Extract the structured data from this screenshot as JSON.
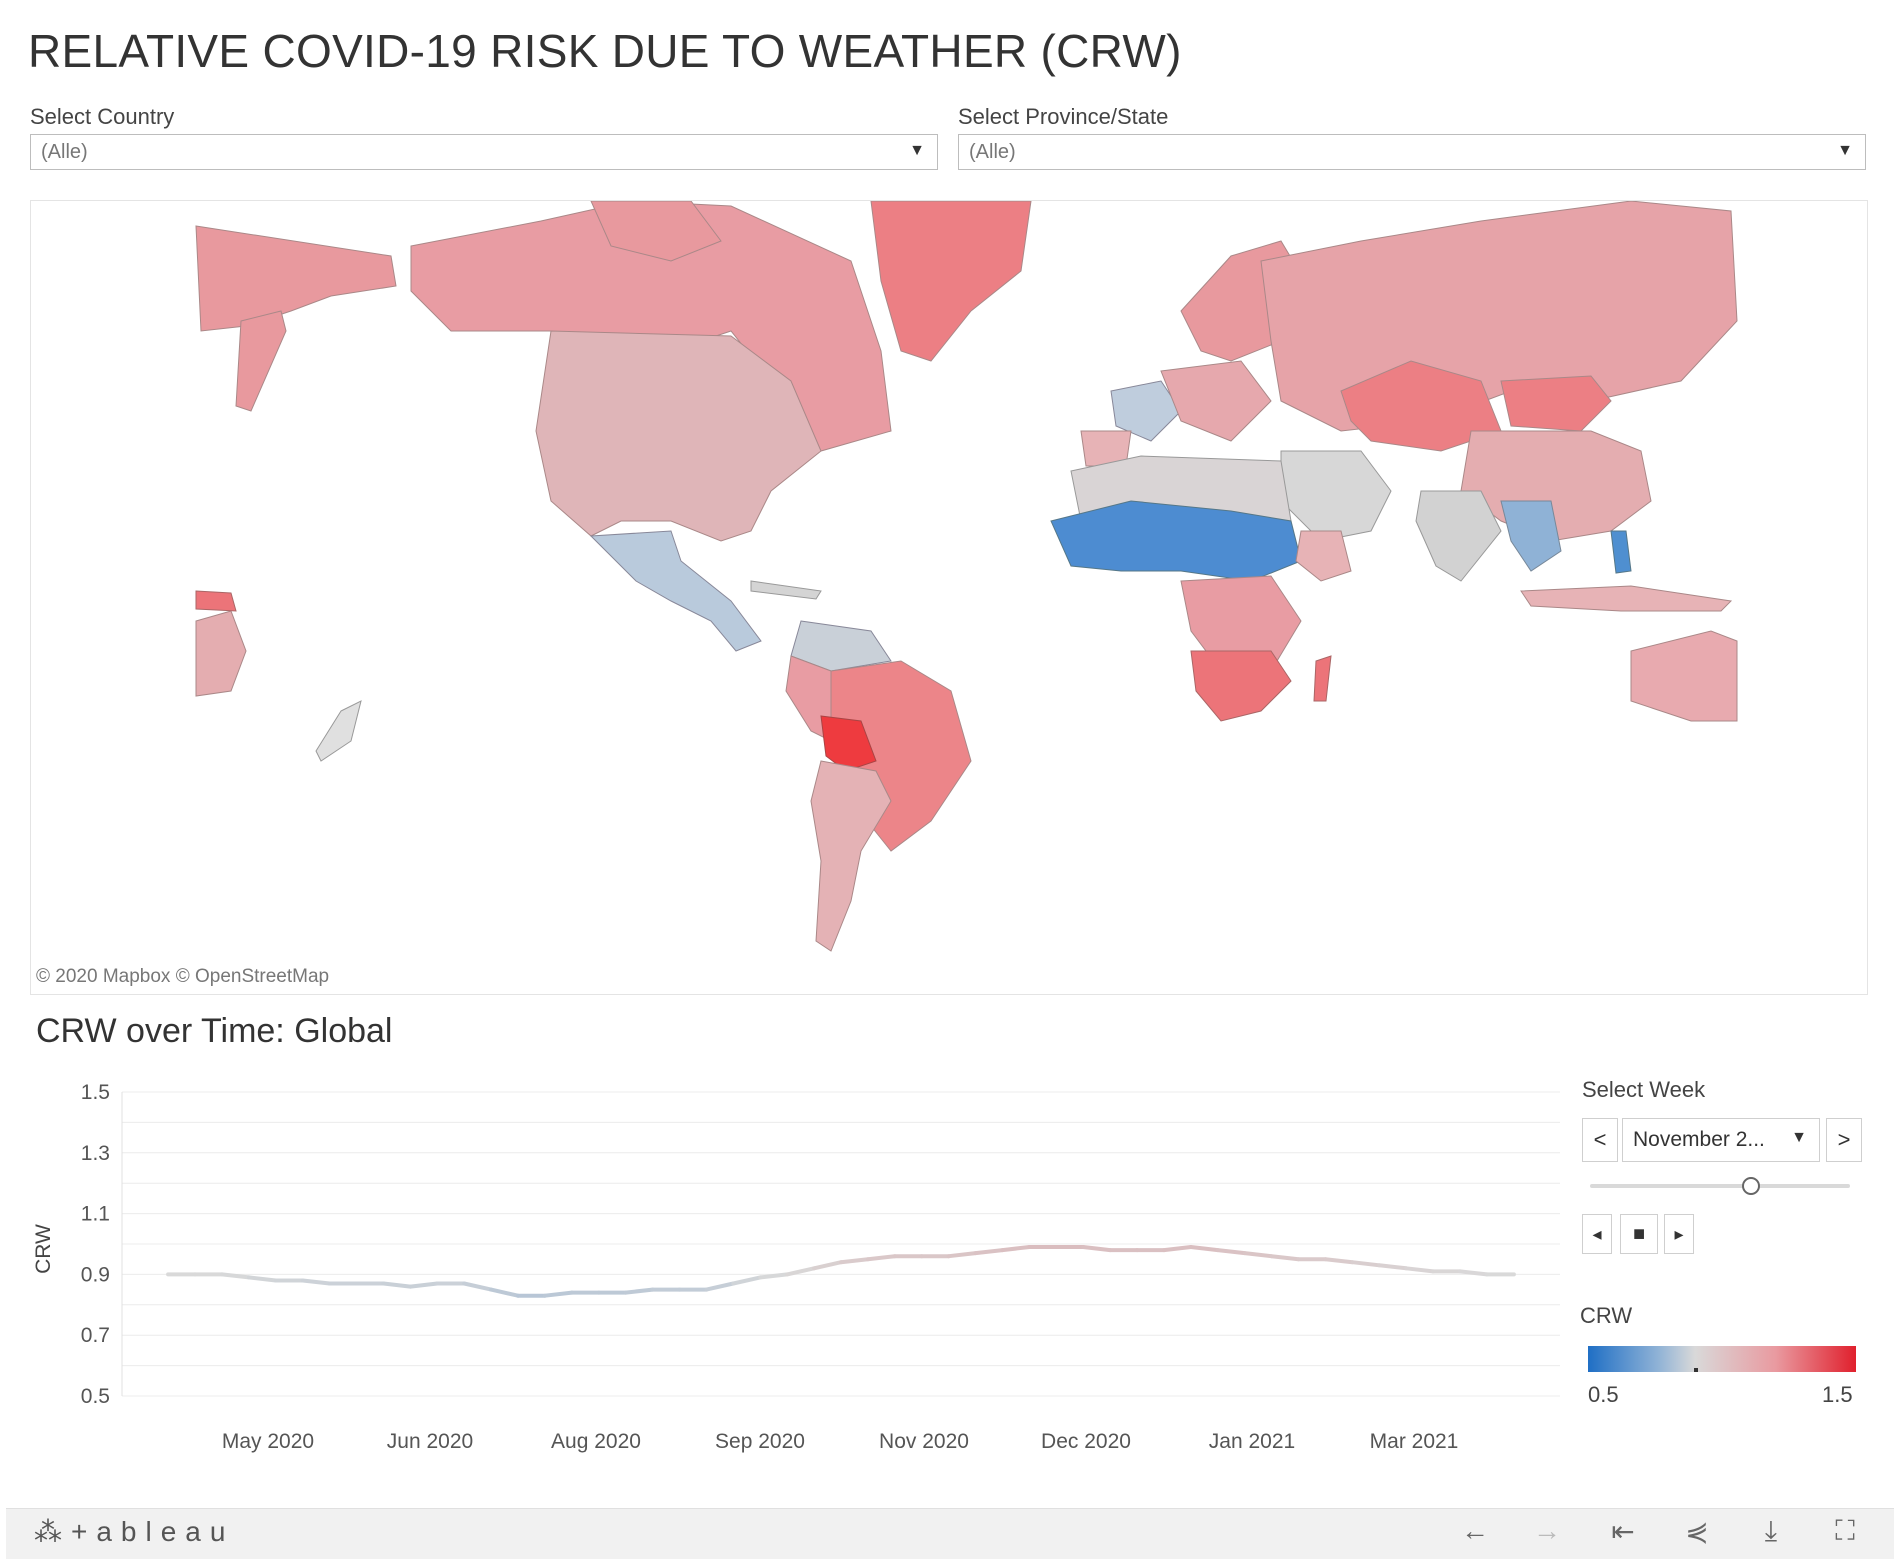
{
  "title": "RELATIVE COVID-19 RISK DUE TO WEATHER (CRW)",
  "filters": {
    "country": {
      "label": "Select Country",
      "value": "(Alle)"
    },
    "province": {
      "label": "Select Province/State",
      "value": "(Alle)"
    }
  },
  "map": {
    "credit": "© 2020 Mapbox © OpenStreetMap"
  },
  "chart_section_title": "CRW over Time: Global",
  "chart_data": {
    "type": "line",
    "title": "CRW over Time: Global",
    "xlabel": "",
    "ylabel": "CRW",
    "ylim": [
      0.5,
      1.5
    ],
    "yticks": [
      "1.5",
      "1.3",
      "1.1",
      "0.9",
      "0.7",
      "0.5"
    ],
    "xtick_labels": [
      "May 2020",
      "Jun 2020",
      "Aug 2020",
      "Sep 2020",
      "Nov 2020",
      "Dec 2020",
      "Jan 2021",
      "Mar 2021"
    ],
    "x": [
      "2020-04-13",
      "2020-04-20",
      "2020-04-27",
      "2020-05-04",
      "2020-05-11",
      "2020-05-18",
      "2020-05-25",
      "2020-06-01",
      "2020-06-08",
      "2020-06-15",
      "2020-06-22",
      "2020-06-29",
      "2020-07-06",
      "2020-07-13",
      "2020-07-20",
      "2020-07-27",
      "2020-08-03",
      "2020-08-10",
      "2020-08-17",
      "2020-08-24",
      "2020-08-31",
      "2020-09-07",
      "2020-09-14",
      "2020-09-21",
      "2020-09-28",
      "2020-10-05",
      "2020-10-12",
      "2020-10-19",
      "2020-10-26",
      "2020-11-02",
      "2020-11-09",
      "2020-11-16",
      "2020-11-23",
      "2020-11-30",
      "2020-12-07",
      "2020-12-14",
      "2020-12-21",
      "2020-12-28",
      "2021-01-04",
      "2021-01-11",
      "2021-01-18",
      "2021-01-25",
      "2021-02-01",
      "2021-02-08",
      "2021-02-15",
      "2021-02-22",
      "2021-03-01",
      "2021-03-08",
      "2021-03-15",
      "2021-03-22",
      "2021-03-29"
    ],
    "values": [
      0.9,
      0.9,
      0.9,
      0.89,
      0.88,
      0.88,
      0.87,
      0.87,
      0.87,
      0.86,
      0.87,
      0.87,
      0.85,
      0.83,
      0.83,
      0.84,
      0.84,
      0.84,
      0.85,
      0.85,
      0.85,
      0.87,
      0.89,
      0.9,
      0.92,
      0.94,
      0.95,
      0.96,
      0.96,
      0.96,
      0.97,
      0.98,
      0.99,
      0.99,
      0.99,
      0.98,
      0.98,
      0.98,
      0.99,
      0.98,
      0.97,
      0.96,
      0.95,
      0.95,
      0.94,
      0.93,
      0.92,
      0.91,
      0.91,
      0.9,
      0.9
    ]
  },
  "week_selector": {
    "label": "Select Week",
    "value": "November 2...",
    "prev": "<",
    "next": ">",
    "position": 0.62
  },
  "playback": {
    "back": "◂",
    "stop": "■",
    "forward": "▸"
  },
  "legend": {
    "title": "CRW",
    "min": "0.5",
    "max": "1.5",
    "min_color": "#1f6fc5",
    "mid_color": "#d9d9d9",
    "max_color": "#e0202d"
  },
  "footer": {
    "logo": "⁂+ableau",
    "icons": [
      "undo-icon",
      "redo-icon",
      "revert-icon",
      "share-icon",
      "download-icon",
      "fullscreen-icon"
    ]
  }
}
